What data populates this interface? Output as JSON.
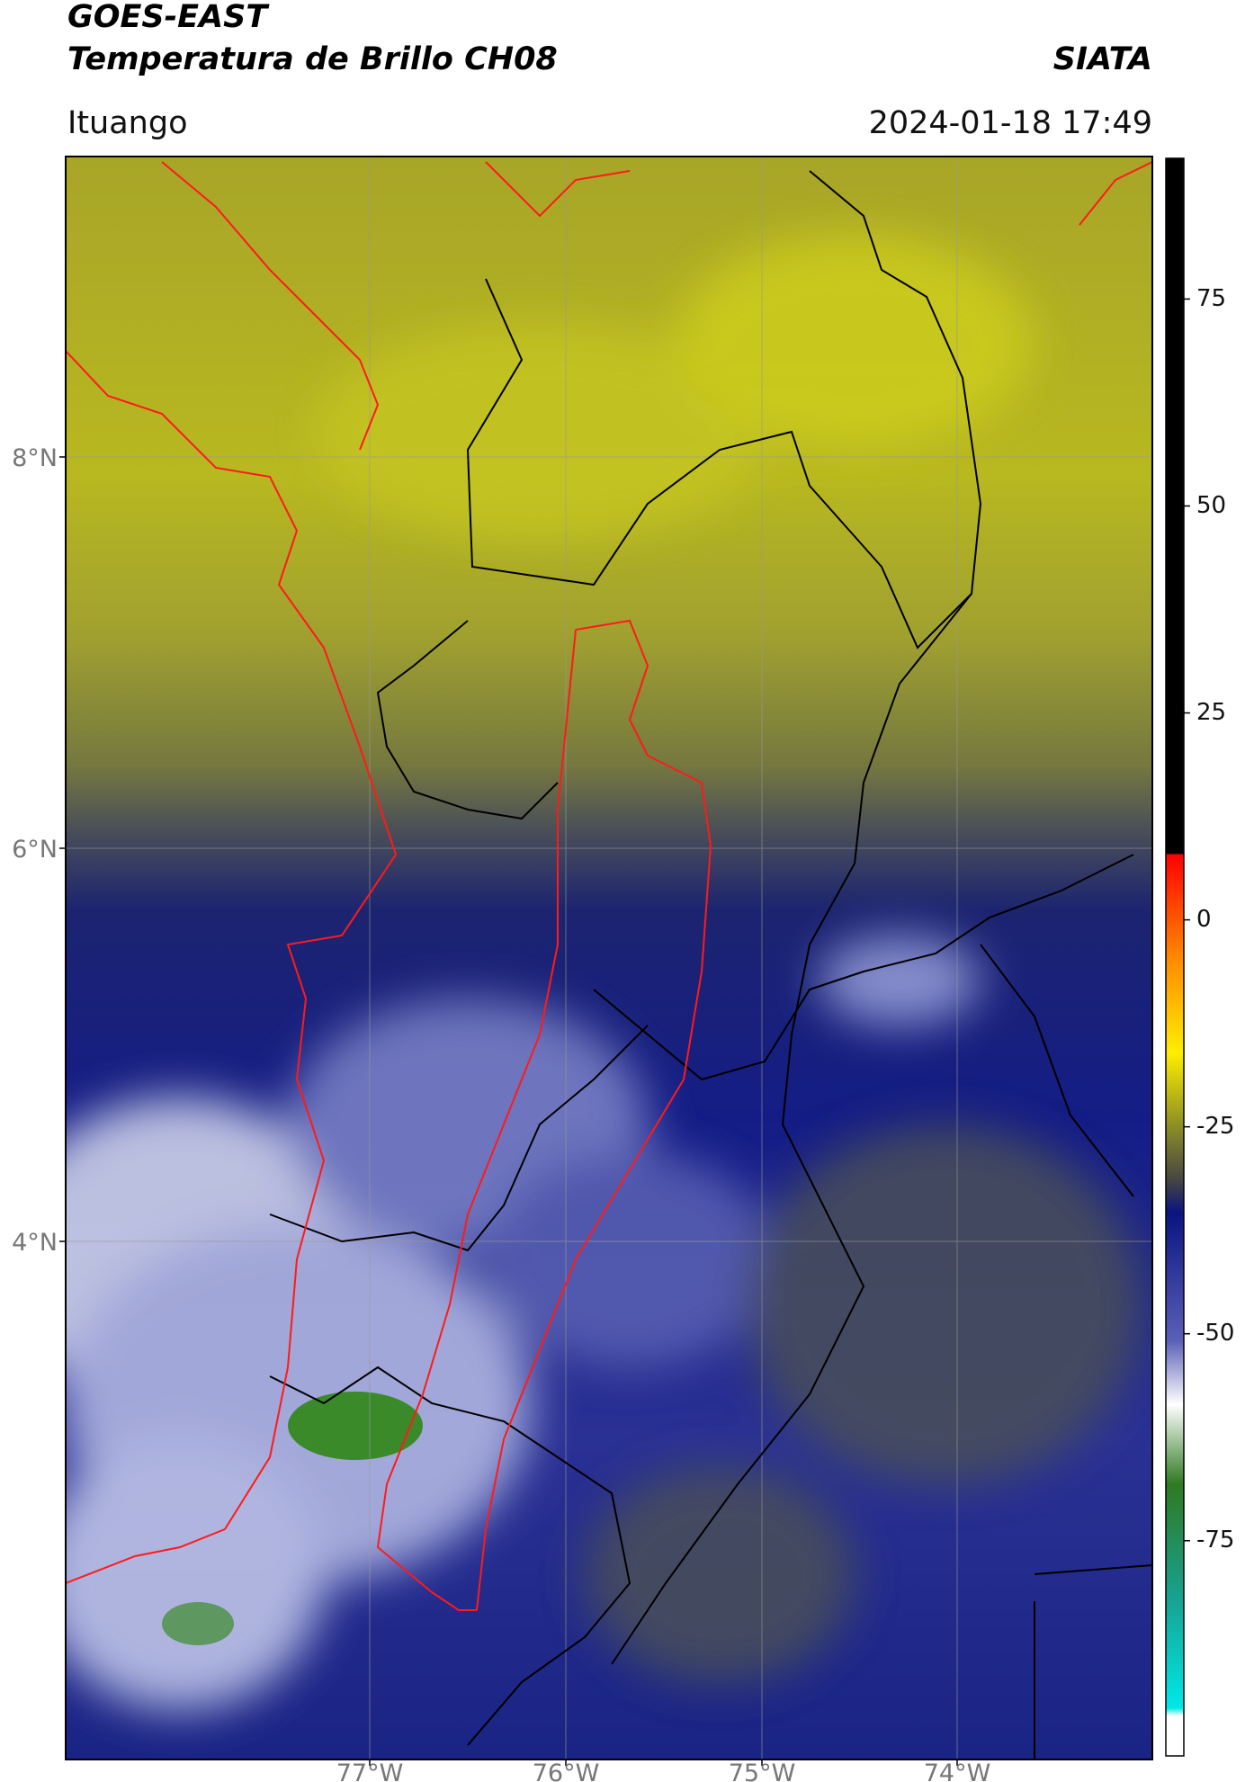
{
  "header": {
    "title": "GOES-EAST",
    "subtitle": "Temperatura de Brillo CH08",
    "source": "SIATA",
    "location": "Ituango",
    "timestamp": "2024-01-18 17:49"
  },
  "map": {
    "lat_labels": [
      "8°N",
      "6°N",
      "4°N"
    ],
    "lon_labels": [
      "77°W",
      "76°W",
      "75°W",
      "74°W"
    ]
  },
  "colorbar": {
    "lim": [
      -101,
      92
    ],
    "ticks": [
      75,
      50,
      25,
      0,
      -25,
      -50,
      -75
    ]
  }
}
